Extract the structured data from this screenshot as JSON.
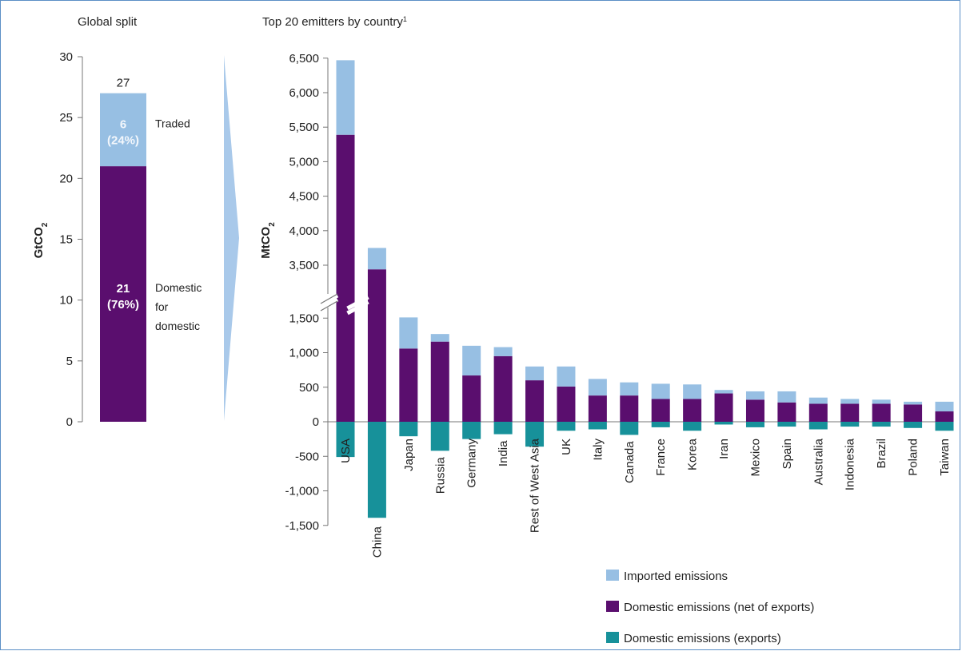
{
  "colors": {
    "imported": "#97bfe3",
    "domestic": "#5a0e6e",
    "exports": "#17919a",
    "axis": "#777777",
    "arrow": "#a9c9ea"
  },
  "chart_data": [
    {
      "type": "bar",
      "title": "Global split",
      "ylabel": "GtCO",
      "ylabel_sub": "2",
      "ylim": [
        0,
        30
      ],
      "yticks": [
        0,
        5,
        10,
        15,
        20,
        25,
        30
      ],
      "total_label": "27",
      "stack": [
        {
          "name": "Domestic for domestic",
          "value": 21,
          "value_label": "21",
          "share_label": "(76%)",
          "side_label": [
            "Domestic",
            "for",
            "domestic"
          ]
        },
        {
          "name": "Traded",
          "value": 6,
          "value_label": "6",
          "share_label": "(24%)",
          "side_label": [
            "Traded"
          ]
        }
      ]
    },
    {
      "type": "bar",
      "title": "Top 20 emitters by country",
      "title_note": "1",
      "ylabel": "MtCO",
      "ylabel_sub": "2",
      "yticks": [
        -1500,
        -1000,
        -500,
        0,
        500,
        1000,
        1500,
        3500,
        4000,
        4500,
        5000,
        5500,
        6000,
        6500
      ],
      "ytick_labels": [
        "-1,500",
        "-1,000",
        "-500",
        "0",
        "500",
        "1,000",
        "1,500",
        "3,500",
        "4,000",
        "4,500",
        "5,000",
        "5,500",
        "6,000",
        "6,500"
      ],
      "axis_break": [
        1700,
        3300
      ],
      "categories": [
        "USA",
        "China",
        "Japan",
        "Russia",
        "Germany",
        "India",
        "Rest of West Asia",
        "UK",
        "Italy",
        "Canada",
        "France",
        "Korea",
        "Iran",
        "Mexico",
        "Spain",
        "Australia",
        "Indonesia",
        "Brazil",
        "Poland",
        "Taiwan"
      ],
      "series": [
        {
          "name": "Imported emissions",
          "values": [
            1080,
            310,
            450,
            110,
            430,
            130,
            200,
            290,
            240,
            190,
            220,
            210,
            50,
            120,
            160,
            90,
            70,
            60,
            40,
            140
          ]
        },
        {
          "name": "Domestic emissions (net of exports)",
          "values": [
            5390,
            3440,
            1060,
            1160,
            670,
            950,
            600,
            510,
            380,
            380,
            330,
            330,
            410,
            320,
            280,
            260,
            260,
            260,
            250,
            150
          ]
        },
        {
          "name": "Domestic emissions (exports)",
          "values": [
            -510,
            -1390,
            -210,
            -420,
            -250,
            -180,
            -360,
            -130,
            -110,
            -190,
            -80,
            -130,
            -40,
            -80,
            -70,
            -110,
            -70,
            -70,
            -90,
            -130
          ]
        }
      ]
    }
  ]
}
